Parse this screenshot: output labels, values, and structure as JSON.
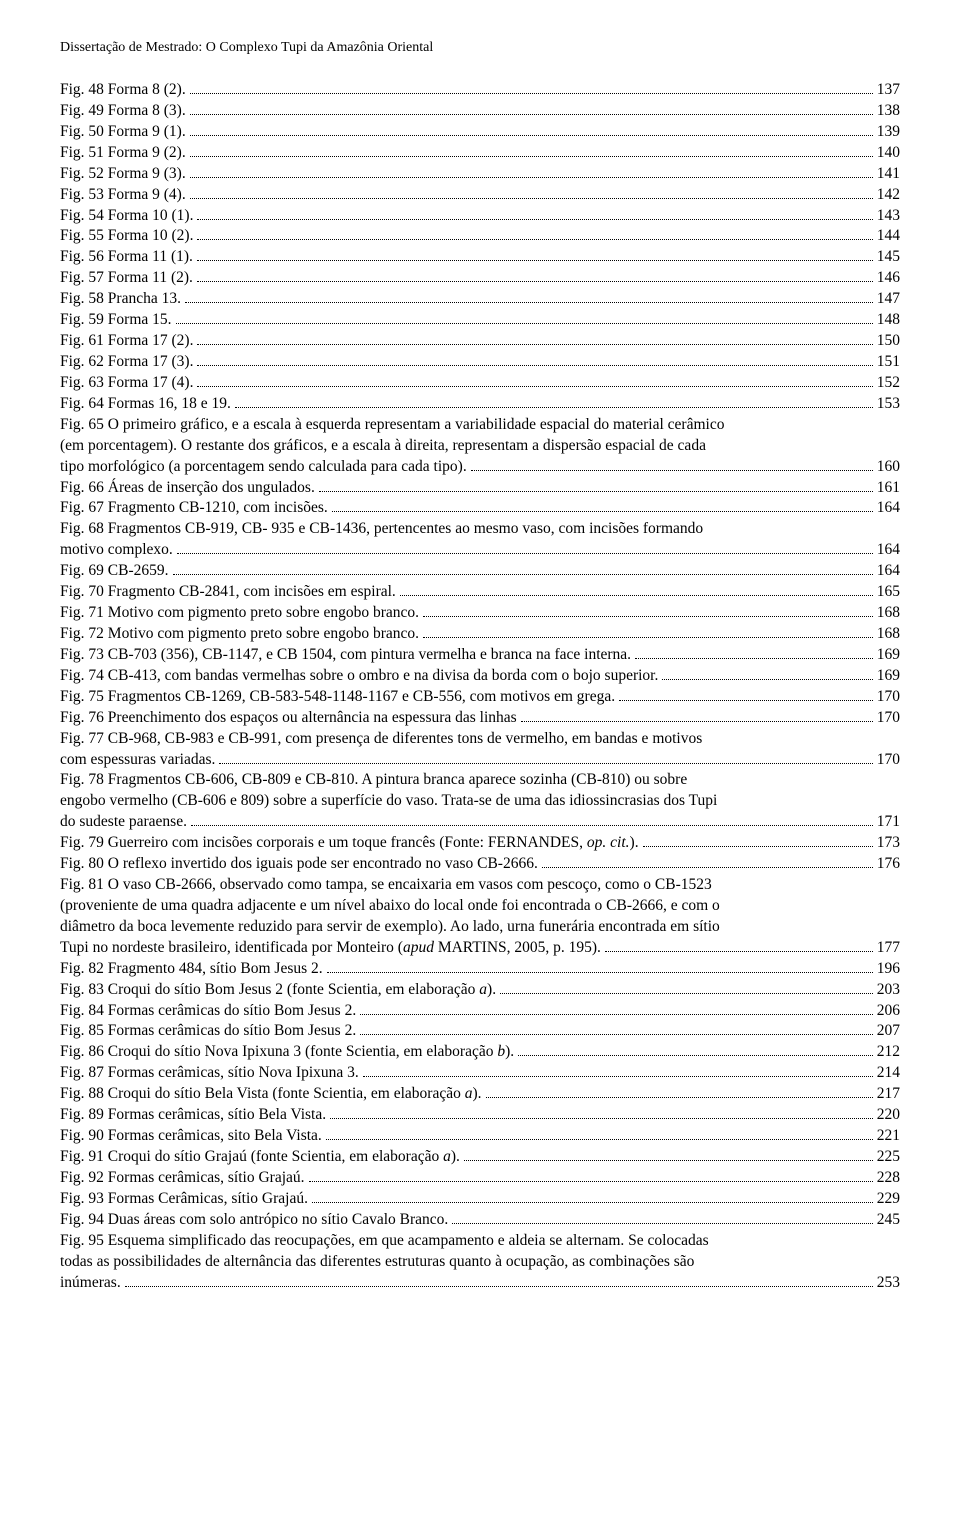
{
  "header": "Dissertação de Mestrado: O Complexo Tupi da Amazônia Oriental",
  "entries": [
    {
      "lines": [
        "Fig. 48 Forma 8 (2)."
      ],
      "page": "137"
    },
    {
      "lines": [
        "Fig. 49 Forma 8 (3)."
      ],
      "page": "138"
    },
    {
      "lines": [
        "Fig. 50 Forma 9 (1)."
      ],
      "page": "139"
    },
    {
      "lines": [
        "Fig. 51 Forma 9 (2)."
      ],
      "page": "140"
    },
    {
      "lines": [
        "Fig. 52 Forma 9 (3)."
      ],
      "page": "141"
    },
    {
      "lines": [
        "Fig. 53 Forma 9 (4)."
      ],
      "page": "142"
    },
    {
      "lines": [
        "Fig. 54 Forma 10 (1)."
      ],
      "page": "143"
    },
    {
      "lines": [
        "Fig. 55 Forma 10 (2)."
      ],
      "page": "144"
    },
    {
      "lines": [
        "Fig. 56 Forma 11 (1)."
      ],
      "page": "145"
    },
    {
      "lines": [
        "Fig. 57 Forma 11 (2)."
      ],
      "page": "146"
    },
    {
      "lines": [
        "Fig. 58 Prancha 13."
      ],
      "page": "147"
    },
    {
      "lines": [
        "Fig. 59 Forma 15."
      ],
      "page": "148"
    },
    {
      "lines": [
        "Fig. 61 Forma 17 (2)."
      ],
      "page": "150"
    },
    {
      "lines": [
        "Fig. 62 Forma 17 (3)."
      ],
      "page": "151"
    },
    {
      "lines": [
        "Fig. 63 Forma 17 (4)."
      ],
      "page": "152"
    },
    {
      "lines": [
        "Fig. 64 Formas 16, 18 e 19."
      ],
      "page": "153"
    },
    {
      "lines": [
        "Fig. 65 O primeiro gráfico, e a escala à esquerda representam a variabilidade espacial do material cerâmico",
        "(em porcentagem). O restante dos gráficos, e a escala à direita, representam a dispersão espacial de cada",
        "tipo morfológico (a porcentagem sendo calculada para cada tipo)."
      ],
      "page": "160"
    },
    {
      "lines": [
        "Fig. 66 Áreas de inserção dos ungulados."
      ],
      "page": "161"
    },
    {
      "lines": [
        "Fig. 67 Fragmento CB-1210, com incisões."
      ],
      "page": "164"
    },
    {
      "lines": [
        "Fig. 68 Fragmentos CB-919, CB- 935 e CB-1436, pertencentes ao mesmo vaso, com incisões formando",
        "motivo complexo."
      ],
      "page": "164"
    },
    {
      "lines": [
        "Fig. 69 CB-2659."
      ],
      "page": "164"
    },
    {
      "lines": [
        "Fig. 70 Fragmento CB-2841, com incisões em espiral."
      ],
      "page": "165"
    },
    {
      "lines": [
        "Fig. 71 Motivo com pigmento preto sobre engobo branco."
      ],
      "page": "168"
    },
    {
      "lines": [
        "Fig. 72 Motivo com pigmento preto sobre engobo branco."
      ],
      "page": "168"
    },
    {
      "lines": [
        "Fig. 73 CB-703 (356), CB-1147, e CB 1504, com pintura vermelha e branca na face interna."
      ],
      "page": "169"
    },
    {
      "lines": [
        "Fig. 74 CB-413, com bandas vermelhas sobre o ombro e na divisa da borda com o bojo superior."
      ],
      "page": "169"
    },
    {
      "lines": [
        "Fig. 75 Fragmentos CB-1269, CB-583-548-1148-1167 e CB-556, com motivos em grega."
      ],
      "page": "170"
    },
    {
      "lines": [
        "Fig. 76 Preenchimento dos espaços ou alternância na espessura das linhas"
      ],
      "page": "170"
    },
    {
      "lines": [
        "Fig. 77 CB-968, CB-983 e CB-991, com presença de diferentes tons de vermelho, em bandas e motivos",
        "com espessuras variadas."
      ],
      "page": "170"
    },
    {
      "lines": [
        "Fig. 78 Fragmentos CB-606, CB-809 e CB-810. A pintura branca aparece sozinha (CB-810) ou sobre",
        "engobo vermelho (CB-606 e 809) sobre a superfície do vaso. Trata-se de uma das idiossincrasias dos Tupi",
        "do sudeste paraense."
      ],
      "page": "171"
    },
    {
      "lines": [
        "Fig. 79 Guerreiro com incisões corporais e um toque francês (Fonte: FERNANDES, <i>op. cit.</i>)."
      ],
      "page": "173"
    },
    {
      "lines": [
        "Fig. 80 O reflexo invertido dos iguais pode ser encontrado no vaso CB-2666."
      ],
      "page": "176"
    },
    {
      "lines": [
        "Fig. 81 O vaso CB-2666, observado como tampa, se encaixaria em vasos com pescoço, como  o CB-1523",
        "(proveniente de uma quadra adjacente e um nível abaixo do local onde foi encontrada o CB-2666, e com o",
        "diâmetro da boca levemente reduzido para servir de exemplo). Ao lado, urna funerária encontrada em sítio",
        "Tupi no nordeste brasileiro, identificada por Monteiro (<i>apud</i> MARTINS, 2005, p. 195)."
      ],
      "page": "177"
    },
    {
      "lines": [
        "Fig. 82 Fragmento 484, sítio Bom Jesus 2."
      ],
      "page": "196"
    },
    {
      "lines": [
        "Fig. 83 Croqui do sítio Bom Jesus 2 (fonte Scientia, em elaboração <i>a</i>)."
      ],
      "page": "203"
    },
    {
      "lines": [
        "Fig. 84 Formas cerâmicas do sítio Bom Jesus 2."
      ],
      "page": "206"
    },
    {
      "lines": [
        "Fig. 85 Formas cerâmicas do sítio Bom Jesus 2."
      ],
      "page": "207"
    },
    {
      "lines": [
        "Fig. 86 Croqui do sítio Nova Ipixuna 3 (fonte Scientia, em elaboração <i>b</i>)."
      ],
      "page": "212"
    },
    {
      "lines": [
        "Fig. 87 Formas cerâmicas, sítio Nova Ipixuna 3."
      ],
      "page": "214"
    },
    {
      "lines": [
        "Fig. 88 Croqui do sítio Bela Vista (fonte Scientia, em elaboração <i>a</i>)."
      ],
      "page": "217"
    },
    {
      "lines": [
        "Fig. 89 Formas cerâmicas, sítio Bela Vista."
      ],
      "page": "220"
    },
    {
      "lines": [
        "Fig. 90 Formas cerâmicas, sito Bela Vista."
      ],
      "page": "221"
    },
    {
      "lines": [
        "Fig. 91 Croqui do sítio Grajaú (fonte Scientia, em elaboração <i>a</i>)."
      ],
      "page": "225"
    },
    {
      "lines": [
        "Fig. 92 Formas cerâmicas, sítio Grajaú."
      ],
      "page": "228"
    },
    {
      "lines": [
        "Fig. 93 Formas Cerâmicas, sítio Grajaú."
      ],
      "page": "229"
    },
    {
      "lines": [
        "Fig. 94 Duas áreas com solo antrópico no sítio Cavalo Branco."
      ],
      "page": "245"
    },
    {
      "lines": [
        "Fig. 95 Esquema simplificado das reocupações, em que acampamento e aldeia se alternam. Se colocadas",
        "todas as possibilidades de alternância das diferentes estruturas quanto à ocupação, as combinações são",
        "inúmeras."
      ],
      "page": "253"
    }
  ]
}
